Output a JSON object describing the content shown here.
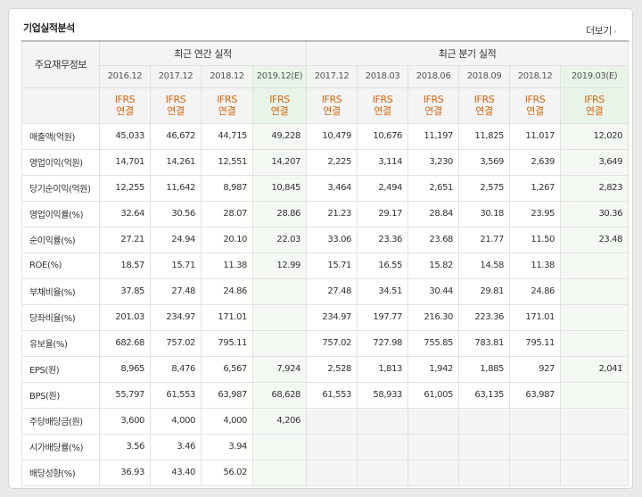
{
  "header": {
    "title": "기업실적분석",
    "more_label": "더보기",
    "more_arrow": "›"
  },
  "table": {
    "corner_label": "주요재무정보",
    "annual_group": "최근 연간 실적",
    "quarter_group": "최근 분기 실적",
    "annual_periods": [
      "2016.12",
      "2017.12",
      "2018.12",
      "2019.12(E)"
    ],
    "quarter_periods": [
      "2017.12",
      "2018.03",
      "2018.06",
      "2018.09",
      "2018.12",
      "2019.03(E)"
    ],
    "ifrs_line1": "IFRS",
    "ifrs_line2": "연결",
    "rows": [
      {
        "label": "매출액(억원)",
        "values": [
          "45,033",
          "46,672",
          "44,715",
          "49,228",
          "10,479",
          "10,676",
          "11,197",
          "11,825",
          "11,017",
          "12,020"
        ]
      },
      {
        "label": "영업이익(억원)",
        "values": [
          "14,701",
          "14,261",
          "12,551",
          "14,207",
          "2,225",
          "3,114",
          "3,230",
          "3,569",
          "2,639",
          "3,649"
        ]
      },
      {
        "label": "당기순이익(억원)",
        "values": [
          "12,255",
          "11,642",
          "8,987",
          "10,845",
          "3,464",
          "2,494",
          "2,651",
          "2,575",
          "1,267",
          "2,823"
        ]
      },
      {
        "label": "영업이익률(%)",
        "values": [
          "32.64",
          "30.56",
          "28.07",
          "28.86",
          "21.23",
          "29.17",
          "28.84",
          "30.18",
          "23.95",
          "30.36"
        ]
      },
      {
        "label": "순이익률(%)",
        "values": [
          "27.21",
          "24.94",
          "20.10",
          "22.03",
          "33.06",
          "23.36",
          "23.68",
          "21.77",
          "11.50",
          "23.48"
        ]
      },
      {
        "label": "ROE(%)",
        "values": [
          "18.57",
          "15.71",
          "11.38",
          "12.99",
          "15.71",
          "16.55",
          "15.82",
          "14.58",
          "11.38",
          ""
        ]
      },
      {
        "label": "부채비율(%)",
        "values": [
          "37.85",
          "27.48",
          "24.86",
          "",
          "27.48",
          "34.51",
          "30.44",
          "29.81",
          "24.86",
          ""
        ]
      },
      {
        "label": "당좌비율(%)",
        "values": [
          "201.03",
          "234.97",
          "171.01",
          "",
          "234.97",
          "197.77",
          "216.30",
          "223.36",
          "171.01",
          ""
        ]
      },
      {
        "label": "유보율(%)",
        "values": [
          "682.68",
          "757.02",
          "795.11",
          "",
          "757.02",
          "727.98",
          "755.85",
          "783.81",
          "795.11",
          ""
        ]
      },
      {
        "label": "EPS(원)",
        "values": [
          "8,965",
          "8,476",
          "6,567",
          "7,924",
          "2,528",
          "1,813",
          "1,942",
          "1,885",
          "927",
          "2,041"
        ]
      },
      {
        "label": "BPS(원)",
        "values": [
          "55,797",
          "61,553",
          "63,987",
          "68,628",
          "61,553",
          "58,933",
          "61,005",
          "63,135",
          "63,987",
          ""
        ]
      },
      {
        "label": "주당배당금(원)",
        "values": [
          "3,600",
          "4,000",
          "4,000",
          "4,206",
          "",
          "",
          "",
          "",
          "",
          ""
        ]
      },
      {
        "label": "시가배당률(%)",
        "values": [
          "3.56",
          "3.46",
          "3.94",
          "",
          "",
          "",
          "",
          "",
          "",
          ""
        ]
      },
      {
        "label": "배당성향(%)",
        "values": [
          "36.93",
          "43.40",
          "56.02",
          "",
          "",
          "",
          "",
          "",
          "",
          ""
        ]
      }
    ]
  },
  "colors": {
    "ifrs_text": "#d9630d",
    "estimate_bg": "#e8f4e8",
    "header_bg": "#f4f4f4"
  }
}
